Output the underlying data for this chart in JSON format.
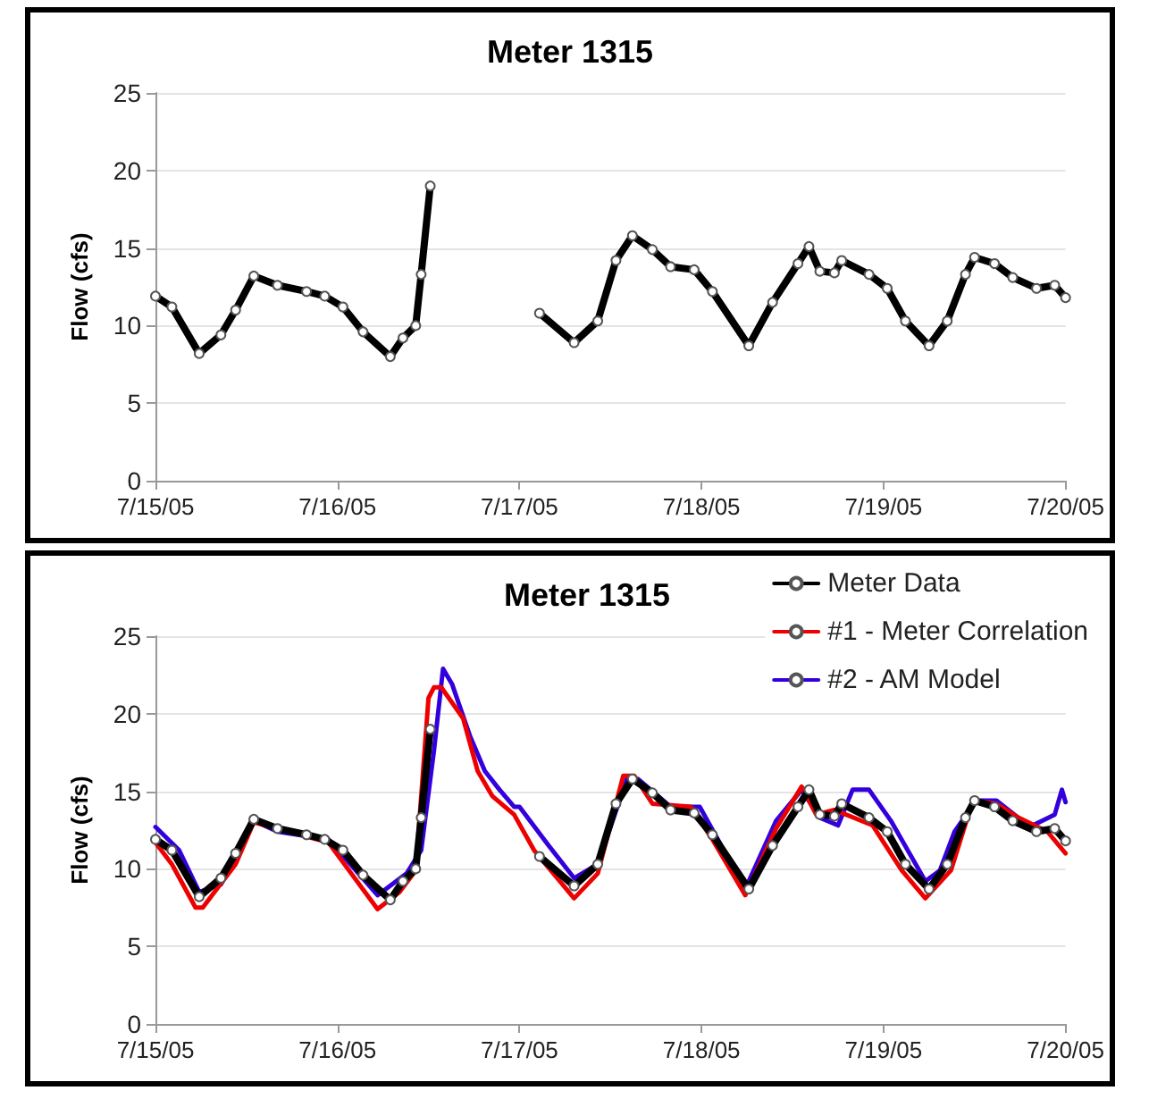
{
  "chart_data": [
    {
      "type": "line",
      "title": "Meter 1315",
      "ylabel": "Flow (cfs)",
      "xlim": [
        "--07-15",
        "--07-20"
      ],
      "xticks": [
        {
          "value": "--07-15",
          "label": "7/15/05"
        },
        {
          "value": "--07-16",
          "label": "7/16/05"
        },
        {
          "value": "--07-17",
          "label": "7/17/05"
        },
        {
          "value": "--07-18",
          "label": "7/18/05"
        },
        {
          "value": "--07-19",
          "label": "7/19/05"
        },
        {
          "value": "--07-20",
          "label": "7/20/05"
        }
      ],
      "ylim": [
        0,
        25
      ],
      "yticks": [
        0,
        5,
        10,
        15,
        20,
        25
      ],
      "grid": "y",
      "legend": false,
      "line_style": "solid",
      "series": [
        {
          "color": "#000000",
          "marker": "circle",
          "x": [
            "--07-15T00:00",
            "--07-15T02:10",
            "--07-15T05:46",
            "--07-15T08:38",
            "--07-15T10:34",
            "--07-15T12:58",
            "--07-15T16:05",
            "--07-15T19:55",
            "--07-15T22:19",
            "--07-16T00:43",
            "--07-16T03:22",
            "--07-16T06:58",
            "--07-16T08:38",
            "--07-16T10:19",
            "--07-16T11:02",
            "--07-16T12:14",
            "--07-16T19:12",
            "--07-17T02:38",
            "--07-17T07:12",
            "--07-17T10:19",
            "--07-17T12:43",
            "--07-17T14:53",
            "--07-17T17:31",
            "--07-17T19:55",
            "--07-17T23:02",
            "--07-18T01:26",
            "--07-18T06:14",
            "--07-18T09:22",
            "--07-18T12:43",
            "--07-18T14:10",
            "--07-18T15:36",
            "--07-18T17:31",
            "--07-18T18:29",
            "--07-18T22:05",
            "--07-19T00:29",
            "--07-19T02:53",
            "--07-19T06:00",
            "--07-19T08:24",
            "--07-19T10:48",
            "--07-19T12:00",
            "--07-19T14:38",
            "--07-19T17:02",
            "--07-19T20:10",
            "--07-19T22:34",
            "--07-20T00:00"
          ],
          "values": [
            11.9,
            11.2,
            8.2,
            9.4,
            11,
            13.2,
            12.6,
            12.2,
            11.9,
            11.2,
            9.6,
            8,
            9.2,
            10,
            13.3,
            19,
            null,
            10.8,
            8.9,
            10.3,
            14.2,
            15.8,
            14.9,
            13.8,
            13.6,
            12.2,
            8.7,
            11.5,
            14,
            15.1,
            13.5,
            13.4,
            14.2,
            13.3,
            12.4,
            10.3,
            8.7,
            10.3,
            13.3,
            14.4,
            14,
            13.1,
            12.4,
            12.6,
            11.8
          ]
        }
      ]
    },
    {
      "type": "line",
      "title": "Meter 1315",
      "ylabel": "Flow (cfs)",
      "xlim": [
        "--07-15",
        "--07-20"
      ],
      "xticks": [
        {
          "value": "--07-15",
          "label": "7/15/05"
        },
        {
          "value": "--07-16",
          "label": "7/16/05"
        },
        {
          "value": "--07-17",
          "label": "7/17/05"
        },
        {
          "value": "--07-18",
          "label": "7/18/05"
        },
        {
          "value": "--07-19",
          "label": "7/19/05"
        },
        {
          "value": "--07-20",
          "label": "7/20/05"
        }
      ],
      "ylim": [
        0,
        25
      ],
      "yticks": [
        0,
        5,
        10,
        15,
        20,
        25
      ],
      "grid": "y",
      "legend": "top right",
      "line_style": "solid",
      "series": [
        {
          "name": "#2 - AM Model",
          "color": "#3300dd",
          "marker": "none",
          "x": [
            "--07-15T00:00",
            "--07-15T03:07",
            "--07-15T05:46",
            "--07-15T08:38",
            "--07-15T12:58",
            "--07-15T16:05",
            "--07-15T22:48",
            "--07-16T05:17",
            "--07-16T09:07",
            "--07-16T11:02",
            "--07-16T12:43",
            "--07-16T13:55",
            "--07-16T15:07",
            "--07-16T17:31",
            "--07-16T19:26",
            "--07-16T21:22",
            "--07-16T23:17",
            "--07-17T00:00",
            "--07-17T03:50",
            "--07-17T07:12",
            "--07-17T10:19",
            "--07-17T14:10",
            "--07-17T15:36",
            "--07-17T19:55",
            "--07-17T23:46",
            "--07-18T05:46",
            "--07-18T09:50",
            "--07-18T13:12",
            "--07-18T15:36",
            "--07-18T18:00",
            "--07-18T19:55",
            "--07-18T22:05",
            "--07-19T00:58",
            "--07-19T05:31",
            "--07-19T07:26",
            "--07-19T09:22",
            "--07-19T12:14",
            "--07-19T14:53",
            "--07-19T17:46",
            "--07-19T19:41",
            "--07-19T22:34",
            "--07-19T23:31",
            "--07-20T00:00"
          ],
          "values": [
            12.7,
            11.2,
            8.5,
            9,
            13.1,
            12.4,
            11.9,
            8.3,
            9.7,
            11.2,
            17.6,
            22.9,
            21.9,
            18.5,
            16.3,
            15.1,
            14,
            14,
            11.5,
            9.4,
            10.3,
            15.8,
            15.8,
            14,
            14,
            8.7,
            13.1,
            15.1,
            13.3,
            12.8,
            15.1,
            15.1,
            13.1,
            9.2,
            9.9,
            12.4,
            14.4,
            14.4,
            13.3,
            12.8,
            13.5,
            15.1,
            14.3
          ]
        },
        {
          "name": "#1 - Meter Correlation",
          "color": "#ee0000",
          "marker": "none",
          "x": [
            "--07-15T00:00",
            "--07-15T02:10",
            "--07-15T05:17",
            "--07-15T06:14",
            "--07-15T10:34",
            "--07-15T12:58",
            "--07-15T22:48",
            "--07-16T05:17",
            "--07-16T08:10",
            "--07-16T10:19",
            "--07-16T12:00",
            "--07-16T12:43",
            "--07-16T13:41",
            "--07-16T16:34",
            "--07-16T18:29",
            "--07-16T20:24",
            "--07-16T23:17",
            "--07-17T01:55",
            "--07-17T07:12",
            "--07-17T10:19",
            "--07-17T13:41",
            "--07-17T15:07",
            "--07-17T17:31",
            "--07-17T22:34",
            "--07-18T01:26",
            "--07-18T05:46",
            "--07-18T09:50",
            "--07-18T13:12",
            "--07-18T15:07",
            "--07-18T17:31",
            "--07-18T22:34",
            "--07-19T02:24",
            "--07-19T05:31",
            "--07-19T08:53",
            "--07-19T11:46",
            "--07-19T14:53",
            "--07-19T17:46",
            "--07-19T21:36",
            "--07-20T00:00"
          ],
          "values": [
            11.7,
            10.3,
            7.5,
            7.5,
            10.3,
            13,
            11.7,
            7.4,
            8.5,
            9.9,
            21,
            21.7,
            21.7,
            19.7,
            16.3,
            14.7,
            13.5,
            11.2,
            8.1,
            9.7,
            16,
            16,
            14.2,
            14,
            11.9,
            8.3,
            12.6,
            15.3,
            13.5,
            13.8,
            12.8,
            9.9,
            8.1,
            9.9,
            14.4,
            14.2,
            13.3,
            12.4,
            11
          ]
        },
        {
          "name": "Meter Data",
          "color": "#000000",
          "marker": "circle",
          "x": [
            "--07-15T00:00",
            "--07-15T02:10",
            "--07-15T05:46",
            "--07-15T08:38",
            "--07-15T10:34",
            "--07-15T12:58",
            "--07-15T16:05",
            "--07-15T19:55",
            "--07-15T22:19",
            "--07-16T00:43",
            "--07-16T03:22",
            "--07-16T06:58",
            "--07-16T08:38",
            "--07-16T10:19",
            "--07-16T11:02",
            "--07-16T12:14",
            "--07-16T19:12",
            "--07-17T02:38",
            "--07-17T07:12",
            "--07-17T10:19",
            "--07-17T12:43",
            "--07-17T14:53",
            "--07-17T17:31",
            "--07-17T19:55",
            "--07-17T23:02",
            "--07-18T01:26",
            "--07-18T06:14",
            "--07-18T09:22",
            "--07-18T12:43",
            "--07-18T14:10",
            "--07-18T15:36",
            "--07-18T17:31",
            "--07-18T18:29",
            "--07-18T22:05",
            "--07-19T00:29",
            "--07-19T02:53",
            "--07-19T06:00",
            "--07-19T08:24",
            "--07-19T10:48",
            "--07-19T12:00",
            "--07-19T14:38",
            "--07-19T17:02",
            "--07-19T20:10",
            "--07-19T22:34",
            "--07-20T00:00"
          ],
          "values": [
            11.9,
            11.2,
            8.2,
            9.4,
            11,
            13.2,
            12.6,
            12.2,
            11.9,
            11.2,
            9.6,
            8,
            9.2,
            10,
            13.3,
            19,
            null,
            10.8,
            8.9,
            10.3,
            14.2,
            15.8,
            14.9,
            13.8,
            13.6,
            12.2,
            8.7,
            11.5,
            14,
            15.1,
            13.5,
            13.4,
            14.2,
            13.3,
            12.4,
            10.3,
            8.7,
            10.3,
            13.3,
            14.4,
            14,
            13.1,
            12.4,
            12.6,
            11.8
          ]
        }
      ]
    }
  ]
}
